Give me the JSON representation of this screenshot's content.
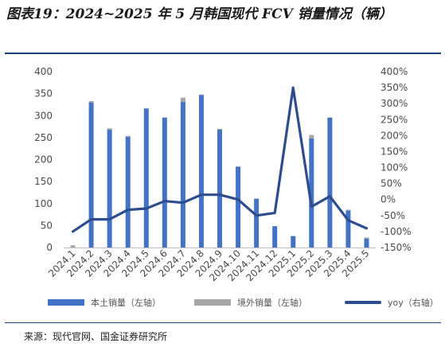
{
  "title": "图表19：2024~2025 年 5 月韩国现代 FCV 销量情况（辆）",
  "source": "来源：现代官网、国金证券研究所",
  "colors": {
    "domestic": "#4472c4",
    "export": "#a6a6a6",
    "yoy": "#2e4d8f",
    "rule": "#1f3f7a"
  },
  "chart_data": {
    "type": "bar",
    "categories": [
      "2024.1",
      "2024.2",
      "2024.3",
      "2024.4",
      "2024.5",
      "2024.6",
      "2024.7",
      "2024.8",
      "2024.9",
      "2024.10",
      "2024.11",
      "2024.12",
      "2025.1",
      "2025.2",
      "2025.3",
      "2025.4",
      "2025.5"
    ],
    "series": [
      {
        "name": "本土销量（左轴）",
        "kind": "bar",
        "axis": "left",
        "stack": "a",
        "color": "#4472c4",
        "values": [
          0,
          330,
          268,
          252,
          316,
          295,
          331,
          347,
          268,
          184,
          111,
          48,
          26,
          248,
          295,
          84,
          20
        ]
      },
      {
        "name": "境外销量（左轴）",
        "kind": "bar",
        "axis": "left",
        "stack": "a",
        "color": "#a6a6a6",
        "values": [
          5,
          3,
          3,
          2,
          1,
          1,
          10,
          1,
          2,
          0,
          0,
          1,
          0,
          8,
          1,
          2,
          3
        ]
      },
      {
        "name": "yoy（右轴）",
        "kind": "line",
        "axis": "right",
        "color": "#2e4d8f",
        "values": [
          -100,
          -62,
          -62,
          -32,
          -28,
          -5,
          -10,
          15,
          15,
          0,
          -50,
          -42,
          350,
          -22,
          10,
          -65,
          -90
        ]
      }
    ],
    "ylim_left": [
      0,
      400
    ],
    "yticks_left": [
      "0",
      "50",
      "100",
      "150",
      "200",
      "250",
      "300",
      "350",
      "400"
    ],
    "ylim_right": [
      -150,
      400
    ],
    "yticks_right": [
      "-150%",
      "-100%",
      "-50%",
      "0%",
      "50%",
      "100%",
      "150%",
      "200%",
      "250%",
      "300%",
      "350%",
      "400%"
    ],
    "grid": false,
    "legend": "bottom"
  }
}
